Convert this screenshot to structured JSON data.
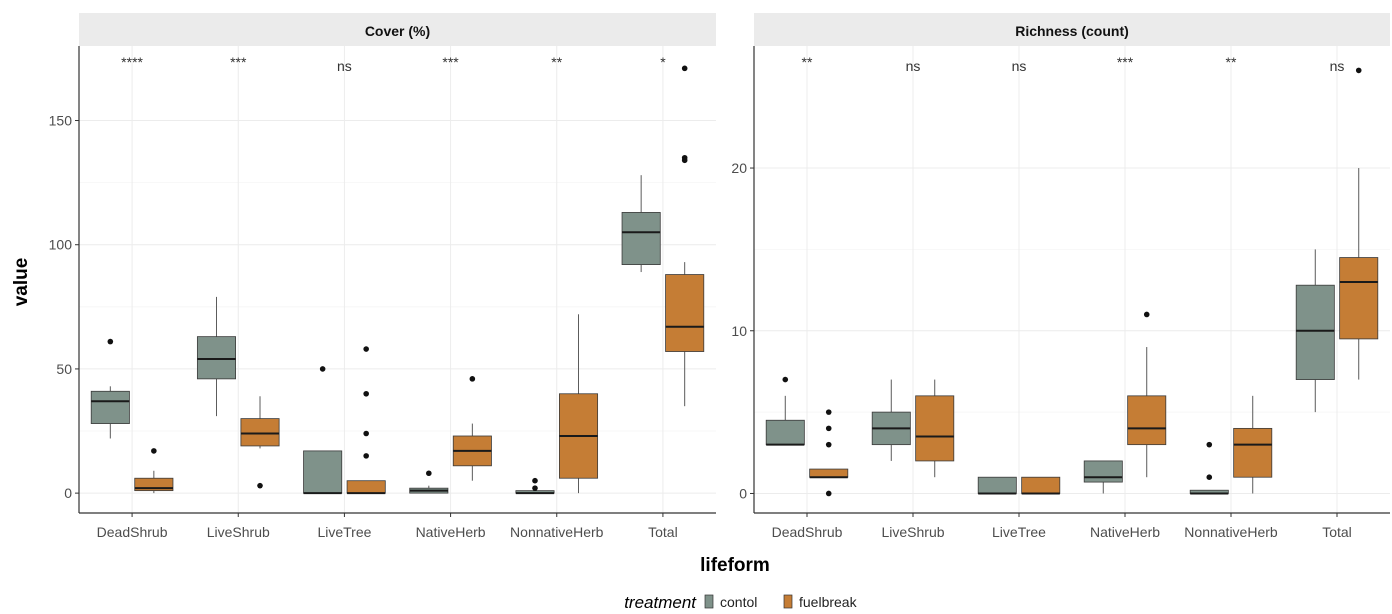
{
  "figure": {
    "ylabel": "value",
    "xlabel": "lifeform",
    "legend_title": "treatment",
    "legend": [
      {
        "label": "contol",
        "color": "#7f928a"
      },
      {
        "label": "fuelbreak",
        "color": "#c57d35"
      }
    ]
  },
  "chart_data": [
    {
      "type": "box",
      "title": "Cover (%)",
      "categories": [
        "DeadShrub",
        "LiveShrub",
        "LiveTree",
        "NativeHerb",
        "NonnativeHerb",
        "Total"
      ],
      "yticks": [
        0,
        50,
        100,
        150
      ],
      "ylim": [
        -8,
        180
      ],
      "significance": [
        "****",
        "***",
        "ns",
        "***",
        "**",
        "*"
      ],
      "series": [
        {
          "name": "contol",
          "color": "#7f928a",
          "boxes": [
            {
              "q1": 28,
              "median": 37,
              "q3": 41,
              "lo": 22,
              "hi": 43,
              "outliers": [
                61
              ]
            },
            {
              "q1": 46,
              "median": 54,
              "q3": 63,
              "lo": 31,
              "hi": 79,
              "outliers": []
            },
            {
              "q1": 0,
              "median": 0,
              "q3": 17,
              "lo": 0,
              "hi": 17,
              "outliers": [
                50
              ]
            },
            {
              "q1": 0,
              "median": 1,
              "q3": 2,
              "lo": 0,
              "hi": 3,
              "outliers": [
                8
              ]
            },
            {
              "q1": 0,
              "median": 0,
              "q3": 1,
              "lo": 0,
              "hi": 1,
              "outliers": [
                5,
                2
              ]
            },
            {
              "q1": 92,
              "median": 105,
              "q3": 113,
              "lo": 89,
              "hi": 128,
              "outliers": []
            }
          ]
        },
        {
          "name": "fuelbreak",
          "color": "#c57d35",
          "boxes": [
            {
              "q1": 1,
              "median": 2,
              "q3": 6,
              "lo": 0,
              "hi": 9,
              "outliers": [
                17
              ]
            },
            {
              "q1": 19,
              "median": 24,
              "q3": 30,
              "lo": 18,
              "hi": 39,
              "outliers": [
                3
              ]
            },
            {
              "q1": 0,
              "median": 0,
              "q3": 5,
              "lo": 0,
              "hi": 5,
              "outliers": [
                58,
                40,
                24,
                15
              ]
            },
            {
              "q1": 11,
              "median": 17,
              "q3": 23,
              "lo": 5,
              "hi": 28,
              "outliers": [
                46
              ]
            },
            {
              "q1": 6,
              "median": 23,
              "q3": 40,
              "lo": 0,
              "hi": 72,
              "outliers": []
            },
            {
              "q1": 57,
              "median": 67,
              "q3": 88,
              "lo": 35,
              "hi": 93,
              "outliers": [
                171,
                135,
                134
              ]
            }
          ]
        }
      ]
    },
    {
      "type": "box",
      "title": "Richness (count)",
      "categories": [
        "DeadShrub",
        "LiveShrub",
        "LiveTree",
        "NativeHerb",
        "NonnativeHerb",
        "Total"
      ],
      "yticks": [
        0,
        10,
        20
      ],
      "ylim": [
        -1.2,
        27.5
      ],
      "significance": [
        "**",
        "ns",
        "ns",
        "***",
        "**",
        "ns"
      ],
      "series": [
        {
          "name": "contol",
          "color": "#7f928a",
          "boxes": [
            {
              "q1": 3,
              "median": 3,
              "q3": 4.5,
              "lo": 3,
              "hi": 6,
              "outliers": [
                7
              ]
            },
            {
              "q1": 3,
              "median": 4,
              "q3": 5,
              "lo": 2,
              "hi": 7,
              "outliers": []
            },
            {
              "q1": 0,
              "median": 0,
              "q3": 1,
              "lo": 0,
              "hi": 1,
              "outliers": []
            },
            {
              "q1": 0.7,
              "median": 1,
              "q3": 2,
              "lo": 0,
              "hi": 2,
              "outliers": []
            },
            {
              "q1": 0,
              "median": 0,
              "q3": 0.2,
              "lo": 0,
              "hi": 0.2,
              "outliers": [
                3,
                1
              ]
            },
            {
              "q1": 7,
              "median": 10,
              "q3": 12.8,
              "lo": 5,
              "hi": 15,
              "outliers": []
            }
          ]
        },
        {
          "name": "fuelbreak",
          "color": "#c57d35",
          "boxes": [
            {
              "q1": 1,
              "median": 1,
              "q3": 1.5,
              "lo": 1,
              "hi": 1.5,
              "outliers": [
                5,
                4,
                3,
                0
              ]
            },
            {
              "q1": 2,
              "median": 3.5,
              "q3": 6,
              "lo": 1,
              "hi": 7,
              "outliers": []
            },
            {
              "q1": 0,
              "median": 0,
              "q3": 1,
              "lo": 0,
              "hi": 1,
              "outliers": []
            },
            {
              "q1": 3,
              "median": 4,
              "q3": 6,
              "lo": 1,
              "hi": 9,
              "outliers": [
                11
              ]
            },
            {
              "q1": 1,
              "median": 3,
              "q3": 4,
              "lo": 0,
              "hi": 6,
              "outliers": []
            },
            {
              "q1": 9.5,
              "median": 13,
              "q3": 14.5,
              "lo": 7,
              "hi": 20,
              "outliers": [
                26
              ]
            }
          ]
        }
      ]
    }
  ]
}
